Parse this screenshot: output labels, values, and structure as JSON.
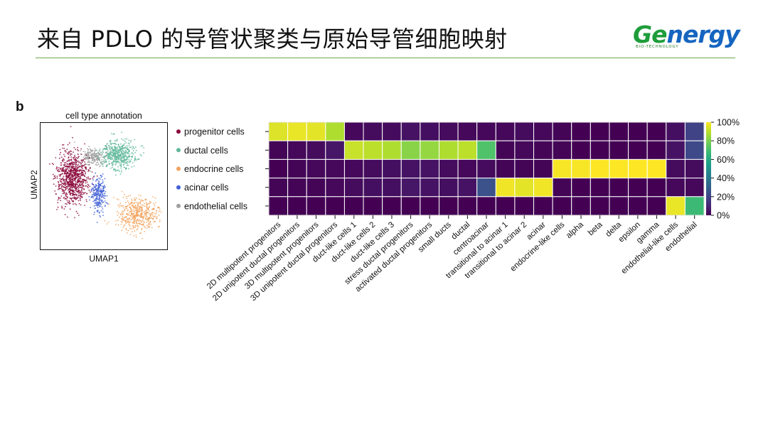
{
  "slide": {
    "title": "来自 PDLO 的导管状聚类与原始导管细胞映射",
    "logo_word_prefix": "Ge",
    "logo_word_rest": "nergy",
    "logo_subtext": "BIO-TECHNOLOGY",
    "panel_letter": "b"
  },
  "umap": {
    "title": "cell type annotation",
    "xlabel": "UMAP1",
    "ylabel": "UMAP2"
  },
  "colors": {
    "accent_rule": "#6aa84f",
    "progenitor": "#8b0a3c",
    "ductal": "#5fb89a",
    "endocrine": "#f3a25c",
    "acinar": "#3f5fd6",
    "endothelial": "#9e9e9e"
  },
  "chart_data": {
    "type": "heatmap",
    "rows": [
      "progenitor cells",
      "ductal cells",
      "endocrine cells",
      "acinar cells",
      "endothelial cells"
    ],
    "row_dot_colors": [
      "#8b0a3c",
      "#5fb89a",
      "#f3a25c",
      "#3f5fd6",
      "#9e9e9e"
    ],
    "columns": [
      "2D multipotent progenitors",
      "2D unipotent ductal progenitors",
      "3D multipotent progenitors",
      "3D unipotent ductal progenitors",
      "duct-like cells 1",
      "duct-like cells 2",
      "duct-like cells 3",
      "stress ductal progenitors",
      "activated ductal progenitors",
      "small ducts",
      "ductal",
      "centroacinar",
      "transitional to acinar 1",
      "transitional to acinar 2",
      "acinar",
      "endocrine-like cells",
      "alpha",
      "beta",
      "delta",
      "epsilon",
      "gamma",
      "endothelial-like cells",
      "endothelial"
    ],
    "values": [
      [
        95,
        97,
        96,
        88,
        2,
        3,
        3,
        5,
        4,
        3,
        2,
        2,
        2,
        3,
        2,
        1,
        0,
        0,
        0,
        0,
        0,
        4,
        20
      ],
      [
        1,
        2,
        3,
        6,
        92,
        90,
        88,
        82,
        84,
        88,
        90,
        72,
        1,
        2,
        1,
        1,
        0,
        0,
        0,
        0,
        0,
        5,
        22
      ],
      [
        0,
        1,
        2,
        2,
        2,
        3,
        4,
        5,
        5,
        3,
        2,
        3,
        1,
        1,
        1,
        99,
        99,
        100,
        100,
        100,
        100,
        3,
        3
      ],
      [
        1,
        1,
        1,
        2,
        3,
        4,
        4,
        6,
        5,
        4,
        5,
        25,
        98,
        96,
        98,
        1,
        0,
        0,
        0,
        0,
        0,
        2,
        2
      ],
      [
        0,
        0,
        0,
        0,
        0,
        0,
        0,
        0,
        0,
        0,
        0,
        0,
        0,
        0,
        0,
        0,
        0,
        0,
        0,
        0,
        0,
        97,
        68
      ]
    ],
    "colorbar": {
      "min": 0,
      "max": 100,
      "ticks": [
        "0%",
        "20%",
        "40%",
        "60%",
        "80%",
        "100%"
      ],
      "tick_values": [
        0,
        20,
        40,
        60,
        80,
        100
      ]
    },
    "colormap": "viridis"
  }
}
